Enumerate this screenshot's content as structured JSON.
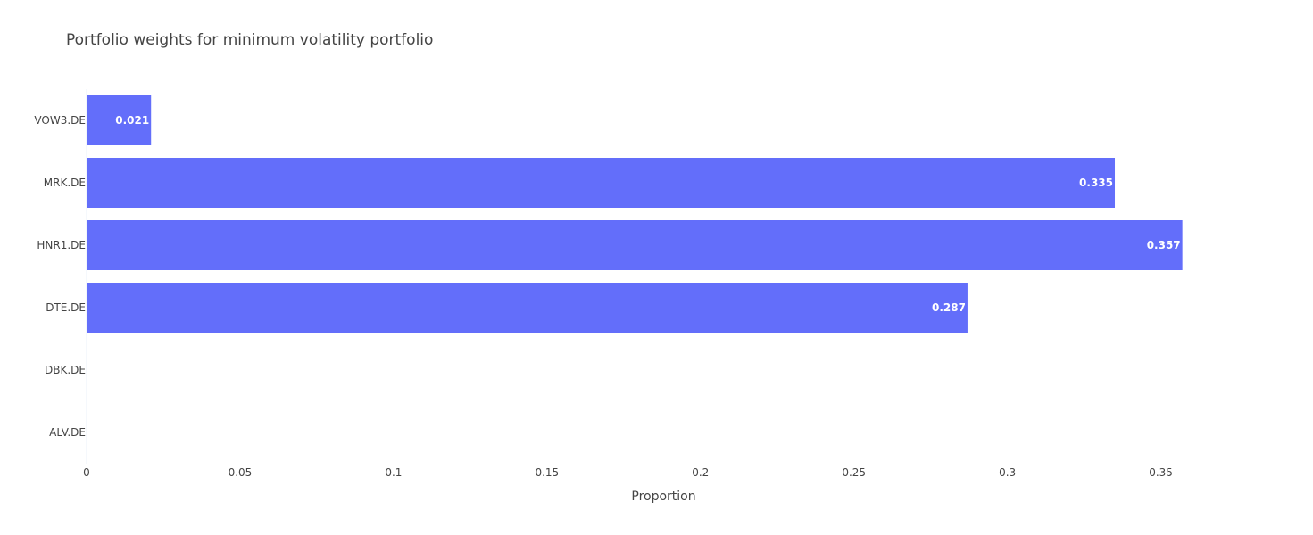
{
  "chart_data": {
    "type": "bar",
    "orientation": "horizontal",
    "title": "Portfolio weights for minimum volatility portfolio",
    "xlabel": "Proportion",
    "ylabel": "",
    "categories": [
      "ALV.DE",
      "DBK.DE",
      "DTE.DE",
      "HNR1.DE",
      "MRK.DE",
      "VOW3.DE"
    ],
    "values": [
      0.0,
      0.0,
      0.287,
      0.357,
      0.335,
      0.021
    ],
    "data_labels": [
      "",
      "",
      "0.287",
      "0.357",
      "0.335",
      "0.021"
    ],
    "xlim": [
      0,
      0.376
    ],
    "xticks": [
      0,
      0.05,
      0.1,
      0.15,
      0.2,
      0.25,
      0.3,
      0.35
    ],
    "xtick_labels": [
      "0",
      "0.05",
      "0.1",
      "0.15",
      "0.2",
      "0.25",
      "0.3",
      "0.35"
    ],
    "grid": false,
    "legend": "none",
    "colors": {
      "bar": "#636efa",
      "text": "#444444",
      "bar_label": "#ffffff",
      "zero_line": "#ebf0f8",
      "background": "#ffffff"
    }
  }
}
